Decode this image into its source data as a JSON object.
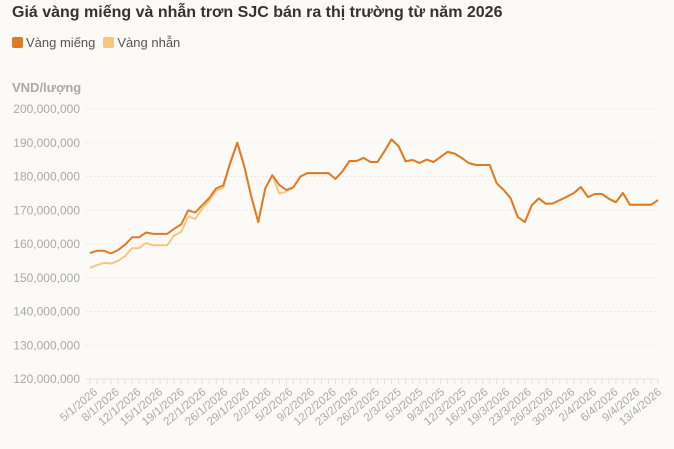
{
  "title": "Giá vàng miếng và nhẫn trơn SJC bán ra thị trường từ năm 2026",
  "chart_data": {
    "type": "line",
    "title": "Giá vàng miếng và nhẫn trơn SJC bán ra thị trường từ năm 2026",
    "ylabel": "VND/lượng",
    "xlabel": "",
    "ylim": [
      120000000,
      200000000
    ],
    "yticks": [
      "200,000,000",
      "190,000,000",
      "180,000,000",
      "170,000,000",
      "160,000,000",
      "150,000,000",
      "140,000,000",
      "130,000,000",
      "120,000,000"
    ],
    "xtick_labels": [
      "5/1/2026",
      "8/1/2026",
      "12/1/2026",
      "15/1/2026",
      "19/1/2026",
      "22/1/2026",
      "26/1/2026",
      "29/1/2026",
      "2/2/2026",
      "5/2/2026",
      "9/2/2026",
      "12/2/2026",
      "23/2/2026",
      "26/2/2025",
      "2/3/2025",
      "5/3/2025",
      "9/3/2025",
      "12/3/2025",
      "16/3/2026",
      "19/3/2026",
      "23/3/2026",
      "26/3/2026",
      "30/3/2026",
      "2/4/2026",
      "6/4/2026",
      "9/4/2026",
      "13/4/2026"
    ],
    "grid": true,
    "legend": "top-left",
    "series": [
      {
        "name": "Vàng miếng",
        "color": "#e07b24",
        "values": [
          157300000,
          158000000,
          158000000,
          157200000,
          158200000,
          159800000,
          162000000,
          162000000,
          163400000,
          163000000,
          163000000,
          163000000,
          164500000,
          165800000,
          170000000,
          169300000,
          171500000,
          173600000,
          176500000,
          177300000,
          184000000,
          190000000,
          183000000,
          174000000,
          166500000,
          176500000,
          180400000,
          177500000,
          176000000,
          176800000,
          180000000,
          181000000,
          181000000,
          181000000,
          181000000,
          179300000,
          181500000,
          184600000,
          184600000,
          185500000,
          184300000,
          184300000,
          187500000,
          191000000,
          189000000,
          184500000,
          184900000,
          184000000,
          185000000,
          184300000,
          185800000,
          187300000,
          186800000,
          185500000,
          184000000,
          183400000,
          183400000,
          183400000,
          178000000,
          176000000,
          173500000,
          168000000,
          166500000,
          171500000,
          173500000,
          171900000,
          172000000,
          173000000,
          174000000,
          175100000,
          176900000,
          173900000,
          174800000,
          174800000,
          173400000,
          172400000,
          175100000,
          171600000,
          171600000,
          171600000,
          171600000,
          173000000
        ]
      },
      {
        "name": "Vàng nhẫn",
        "color": "#f5c77e",
        "values": [
          152900000,
          153800000,
          154400000,
          154200000,
          155000000,
          156400000,
          158800000,
          158800000,
          160300000,
          159600000,
          159600000,
          159600000,
          162500000,
          163600000,
          168200000,
          167400000,
          170500000,
          172800000,
          175800000,
          176600000,
          184000000,
          190000000,
          183000000,
          174000000,
          166500000,
          176500000,
          180400000,
          175000000,
          175500000,
          176800000,
          180000000,
          181000000,
          181000000,
          181000000,
          181000000,
          179300000,
          181500000,
          184600000,
          184600000,
          185500000,
          184300000,
          184300000,
          187500000,
          191000000,
          189000000,
          184500000,
          184900000,
          184000000,
          185000000,
          184300000,
          185800000,
          187300000,
          186800000,
          185500000,
          184000000,
          183400000,
          183400000,
          183400000,
          178000000,
          176000000,
          173500000,
          168000000,
          166500000,
          171500000,
          173500000,
          171900000,
          172000000,
          173000000,
          174000000,
          175100000,
          176900000,
          173900000,
          174800000,
          174800000,
          173400000,
          172400000,
          175100000,
          171600000,
          171600000,
          171600000,
          171600000,
          173000000
        ]
      }
    ]
  }
}
